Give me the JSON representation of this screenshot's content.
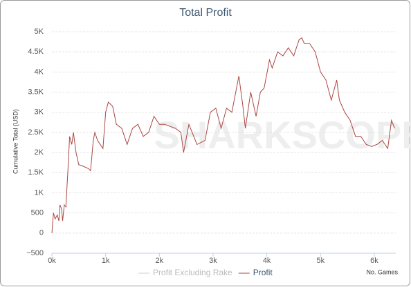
{
  "chart_data": {
    "type": "line",
    "title": "Total Profit",
    "watermark": "SHARKSCOPE",
    "y_label": "Cumulative Total (USD)",
    "x_label": "No. Games",
    "x": [
      0,
      30,
      60,
      100,
      130,
      150,
      180,
      200,
      230,
      260,
      300,
      330,
      370,
      400,
      450,
      500,
      600,
      680,
      720,
      770,
      800,
      850,
      950,
      1000,
      1050,
      1130,
      1200,
      1300,
      1400,
      1500,
      1600,
      1700,
      1800,
      1900,
      2000,
      2100,
      2300,
      2400,
      2450,
      2550,
      2700,
      2850,
      2950,
      3050,
      3150,
      3250,
      3350,
      3480,
      3550,
      3600,
      3700,
      3800,
      3880,
      3950,
      4050,
      4100,
      4200,
      4300,
      4400,
      4500,
      4600,
      4650,
      4700,
      4800,
      4900,
      5000,
      5100,
      5200,
      5300,
      5350,
      5450,
      5550,
      5650,
      5750,
      5850,
      5950,
      6050,
      6150,
      6250,
      6320,
      6380
    ],
    "series": [
      {
        "name": "Profit Excluding Rake",
        "color": "#cccccc",
        "values": [
          null,
          null,
          null,
          null,
          null,
          null,
          null,
          null,
          null,
          null,
          null,
          null,
          null,
          null,
          null,
          null,
          null,
          null,
          null,
          null,
          null,
          null,
          null,
          null,
          null,
          null,
          null,
          null,
          null,
          null,
          null,
          null,
          null,
          null,
          null,
          null,
          null,
          null,
          null,
          null,
          null,
          null,
          null,
          null,
          null,
          null,
          null,
          null,
          null,
          null,
          null,
          null,
          null,
          null,
          null,
          null,
          null,
          null,
          null,
          null,
          null,
          null,
          null,
          null,
          null,
          null,
          null,
          null,
          null,
          null,
          null,
          null,
          null,
          null,
          null,
          null,
          null,
          null,
          null,
          null,
          null
        ]
      },
      {
        "name": "Profit",
        "color": "#aa4643",
        "values": [
          0,
          500,
          350,
          450,
          300,
          700,
          600,
          300,
          700,
          650,
          1600,
          2400,
          2200,
          2500,
          2000,
          1700,
          1650,
          1600,
          1550,
          2300,
          2500,
          2300,
          2100,
          3000,
          3250,
          3150,
          2700,
          2600,
          2200,
          2600,
          2700,
          2400,
          2500,
          2900,
          2700,
          2700,
          2600,
          2500,
          2000,
          2700,
          2200,
          2300,
          3000,
          3100,
          2600,
          3100,
          3000,
          3900,
          3200,
          2600,
          3500,
          2900,
          3500,
          3600,
          4300,
          4100,
          4500,
          4400,
          4600,
          4400,
          4800,
          4850,
          4700,
          4700,
          4500,
          4000,
          3800,
          3300,
          3800,
          3300,
          3000,
          2800,
          2400,
          2400,
          2200,
          2150,
          2200,
          2300,
          2100,
          2800,
          2600
        ]
      }
    ],
    "xlim": [
      0,
      6400
    ],
    "xticks": [
      {
        "value": 0,
        "label": "0k"
      },
      {
        "value": 1000,
        "label": "1k"
      },
      {
        "value": 2000,
        "label": "2k"
      },
      {
        "value": 3000,
        "label": "3k"
      },
      {
        "value": 4000,
        "label": "4k"
      },
      {
        "value": 5000,
        "label": "5k"
      },
      {
        "value": 6000,
        "label": "6k"
      }
    ],
    "ylim": [
      -500,
      5000
    ],
    "yticks": [
      {
        "value": -500,
        "label": "−500"
      },
      0,
      500,
      {
        "value": 1000,
        "label": "1K"
      },
      {
        "value": 1500,
        "label": "1.5K"
      },
      {
        "value": 2000,
        "label": "2K"
      },
      {
        "value": 2500,
        "label": "2.5K"
      },
      {
        "value": 3000,
        "label": "3K"
      },
      {
        "value": 3500,
        "label": "3.5K"
      },
      {
        "value": 4000,
        "label": "4K"
      },
      {
        "value": 4500,
        "label": "4.5K"
      },
      {
        "value": 5000,
        "label": "5K"
      }
    ],
    "grid": true
  }
}
